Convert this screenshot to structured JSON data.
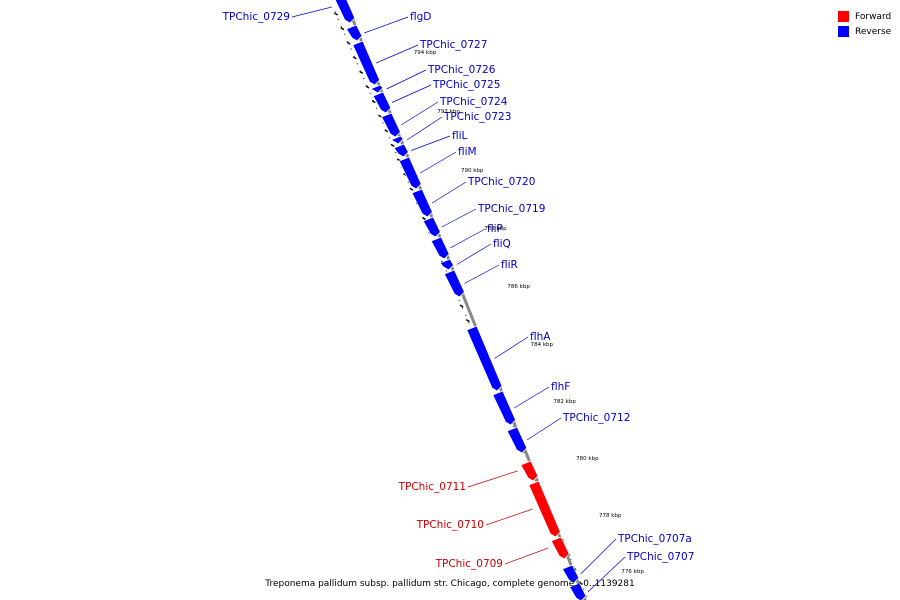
{
  "colors": {
    "forward": "#ff0000",
    "reverse": "#0000ff",
    "reverse_label": "#0000cc",
    "forward_label": "#cc0000",
    "backbone": "#888888"
  },
  "legend": {
    "forward_label": "Forward",
    "reverse_label": "Reverse"
  },
  "footer": {
    "title": "Treponema pallidum subsp. pallidum str. Chicago, complete genome - 0..1139281"
  },
  "scale_labels": [
    "794 kbp",
    "792 kbp",
    "790 kbp",
    "788 kbp",
    "786 kbp",
    "784 kbp",
    "782 kbp",
    "780 kbp",
    "778 kbp",
    "776 kbp"
  ],
  "genes": [
    {
      "name": "TPChic_0729",
      "strand": "reverse",
      "side": "left"
    },
    {
      "name": "flgD",
      "strand": "reverse",
      "side": "right"
    },
    {
      "name": "TPChic_0727",
      "strand": "reverse",
      "side": "right"
    },
    {
      "name": "TPChic_0726",
      "strand": "reverse",
      "side": "right"
    },
    {
      "name": "TPChic_0725",
      "strand": "reverse",
      "side": "right"
    },
    {
      "name": "TPChic_0724",
      "strand": "reverse",
      "side": "right"
    },
    {
      "name": "TPChic_0723",
      "strand": "reverse",
      "side": "right"
    },
    {
      "name": "fliL",
      "strand": "reverse",
      "side": "right"
    },
    {
      "name": "fliM",
      "strand": "reverse",
      "side": "right"
    },
    {
      "name": "TPChic_0720",
      "strand": "reverse",
      "side": "right"
    },
    {
      "name": "TPChic_0719",
      "strand": "reverse",
      "side": "right"
    },
    {
      "name": "fliP",
      "strand": "reverse",
      "side": "right"
    },
    {
      "name": "fliQ",
      "strand": "reverse",
      "side": "right"
    },
    {
      "name": "fliR",
      "strand": "reverse",
      "side": "right"
    },
    {
      "name": "flhA",
      "strand": "reverse",
      "side": "right"
    },
    {
      "name": "flhF",
      "strand": "reverse",
      "side": "right"
    },
    {
      "name": "TPChic_0712",
      "strand": "reverse",
      "side": "right"
    },
    {
      "name": "TPChic_0711",
      "strand": "forward",
      "side": "left"
    },
    {
      "name": "TPChic_0710",
      "strand": "forward",
      "side": "left"
    },
    {
      "name": "TPChic_0709",
      "strand": "forward",
      "side": "left"
    },
    {
      "name": "TPChic_0707a",
      "strand": "reverse",
      "side": "right"
    },
    {
      "name": "TPChic_0707",
      "strand": "reverse",
      "side": "right"
    }
  ]
}
